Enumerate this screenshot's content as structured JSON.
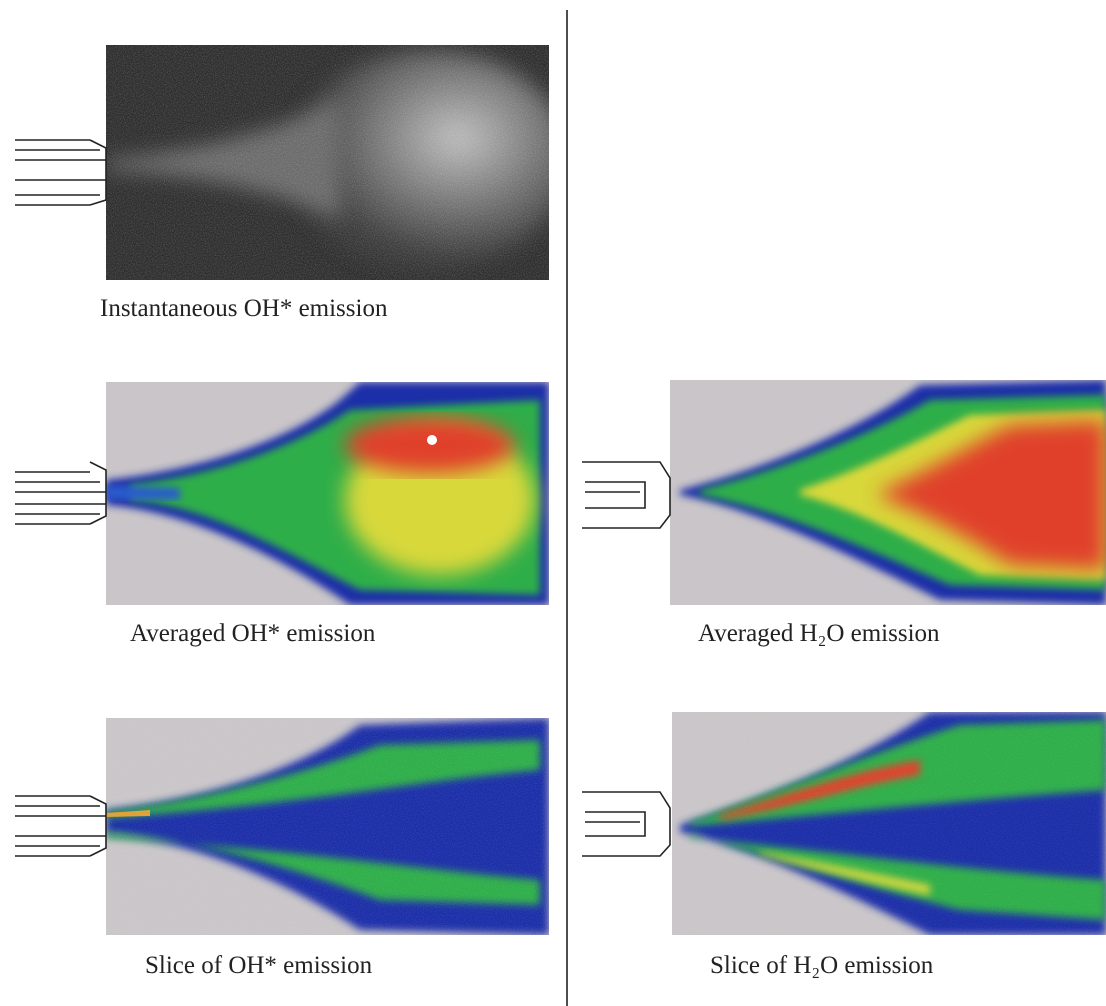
{
  "panels": [
    {
      "caption": "Instantaneous OH* emission"
    },
    {
      "caption": "Averaged OH* emission"
    },
    {
      "caption": "Averaged H₂O emission"
    },
    {
      "caption": "Slice of OH* emission"
    },
    {
      "caption": "Slice of H₂O emission"
    }
  ]
}
